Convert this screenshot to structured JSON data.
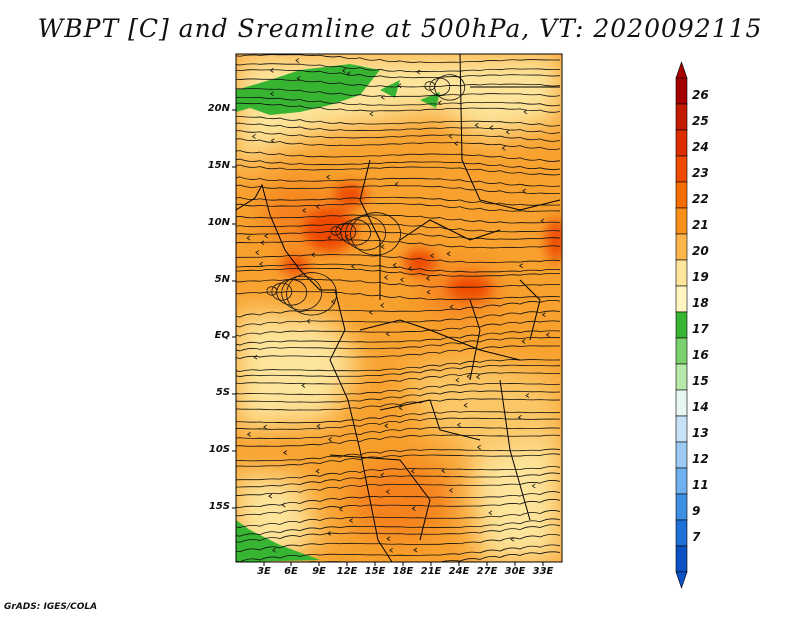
{
  "title": "WBPT [C] and Sreamline at 500hPa, VT: 2020092115",
  "credit": "GrADS: IGES/COLA",
  "lat_labels": [
    "20N",
    "15N",
    "10N",
    "5N",
    "EQ",
    "5S",
    "10S",
    "15S"
  ],
  "lon_labels": [
    "3E",
    "6E",
    "9E",
    "12E",
    "15E",
    "18E",
    "21E",
    "24E",
    "27E",
    "30E",
    "33E"
  ],
  "colorbar": {
    "labels": [
      "26",
      "25",
      "24",
      "23",
      "22",
      "21",
      "20",
      "19",
      "18",
      "17",
      "16",
      "15",
      "14",
      "13",
      "12",
      "11",
      "9",
      "7"
    ],
    "colors": [
      "#a50000",
      "#c31a00",
      "#dc2e00",
      "#ee4a00",
      "#f56d00",
      "#f8901a",
      "#fbb54a",
      "#fde59b",
      "#fff6c2",
      "#37b532",
      "#7ad06c",
      "#b6e8a8",
      "#e8f7f4",
      "#c7e3fa",
      "#9ccaf4",
      "#6fb0ee",
      "#3e8fe4",
      "#1e6fd6",
      "#0c52c4"
    ],
    "top_color": "#a50000",
    "bottom_color": "#0c52c4"
  }
}
